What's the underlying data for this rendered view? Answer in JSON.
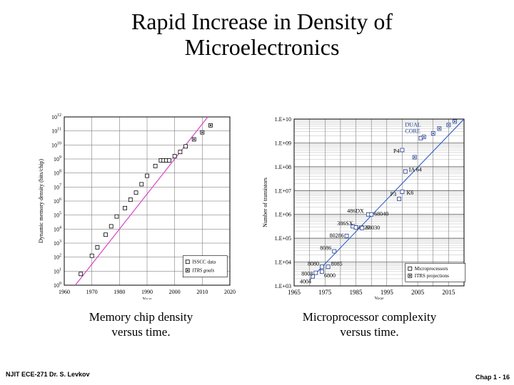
{
  "slide": {
    "title_line1": "Rapid Increase in Density of",
    "title_line2": "Microelectronics",
    "caption_left_line1": "Memory chip density",
    "caption_left_line2": "versus time.",
    "caption_right_line1": "Microprocessor complexity",
    "caption_right_line2": "versus time.",
    "footer_left": "NJIT  ECE-271   Dr. S. Levkov",
    "footer_right": "Chap 1 - 16"
  },
  "chart_data": [
    {
      "type": "scatter",
      "xlabel": "Year",
      "ylabel": "Dynamic memory density (bits/chip)",
      "xlim": [
        1960,
        2020
      ],
      "ylim_log10": [
        0,
        12
      ],
      "log_y": true,
      "grid": true,
      "x_ticks": [
        1960,
        1970,
        1980,
        1990,
        2000,
        2010,
        2020
      ],
      "y_tick_labels": [
        "10^0",
        "10^1",
        "10^2",
        "10^3",
        "10^4",
        "10^5",
        "10^6",
        "10^7",
        "10^8",
        "10^9",
        "10^10",
        "10^11",
        "10^12"
      ],
      "legend_position": "bottom-right",
      "trend_color": "#d946c8",
      "trend_log10": [
        [
          1964,
          0
        ],
        [
          2012,
          12
        ]
      ],
      "series": [
        {
          "name": "ISSCC data",
          "marker": "open-square",
          "points_log10": [
            [
              1966,
              0.8
            ],
            [
              1970,
              2.1
            ],
            [
              1972,
              2.7
            ],
            [
              1975,
              3.6
            ],
            [
              1977,
              4.2
            ],
            [
              1979,
              4.9
            ],
            [
              1982,
              5.5
            ],
            [
              1984,
              6.1
            ],
            [
              1986,
              6.6
            ],
            [
              1988,
              7.2
            ],
            [
              1990,
              7.8
            ],
            [
              1993,
              8.5
            ],
            [
              1995,
              8.9
            ],
            [
              1996,
              8.9
            ],
            [
              1997,
              8.9
            ],
            [
              1998,
              8.9
            ],
            [
              2000,
              9.2
            ],
            [
              2002,
              9.5
            ],
            [
              2004,
              9.9
            ]
          ]
        },
        {
          "name": "ITRS goals",
          "marker": "dotted-square",
          "points_log10": [
            [
              2007,
              10.4
            ],
            [
              2010,
              10.9
            ],
            [
              2013,
              11.4
            ]
          ]
        }
      ]
    },
    {
      "type": "scatter",
      "xlabel": "Year",
      "ylabel": "Number of transistors",
      "xlim": [
        1965,
        2020
      ],
      "ylim_log10": [
        3,
        10
      ],
      "log_y": true,
      "grid": true,
      "x_ticks": [
        1965,
        1975,
        1985,
        1995,
        2005,
        2015
      ],
      "y_tick_labels": [
        "1.E+03",
        "1.E+04",
        "1.E+05",
        "1.E+06",
        "1.E+07",
        "1.E+08",
        "1.E+09",
        "1.E+10"
      ],
      "legend_position": "bottom-right",
      "trend_color": "#1e4fc8",
      "trend_log10": [
        [
          1970,
          3.25
        ],
        [
          2020,
          10
        ]
      ],
      "series": [
        {
          "name": "Microprocessors",
          "marker": "open-square",
          "points": [
            {
              "label": "4004",
              "x": 1971,
              "log10": 3.4
            },
            {
              "label": "8008",
              "x": 1972,
              "log10": 3.55
            },
            {
              "label": "8080",
              "x": 1974,
              "log10": 3.8
            },
            {
              "label": "6800",
              "x": 1974,
              "log10": 3.6
            },
            {
              "label": "8085",
              "x": 1976,
              "log10": 3.8
            },
            {
              "label": "8086",
              "x": 1978,
              "log10": 4.45
            },
            {
              "label": "80286",
              "x": 1982,
              "log10": 5.1
            },
            {
              "label": "68020",
              "x": 1984,
              "log10": 5.5
            },
            {
              "label": "386SX",
              "x": 1985,
              "log10": 5.45
            },
            {
              "label": "68030",
              "x": 1987,
              "log10": 5.43
            },
            {
              "label": "486DX",
              "x": 1989,
              "log10": 6.0
            },
            {
              "label": "68040",
              "x": 1990,
              "log10": 6.0
            },
            {
              "label": "P3",
              "x": 1999,
              "log10": 6.65
            },
            {
              "label": "K6",
              "x": 2000,
              "log10": 6.95
            },
            {
              "label": "IA 64",
              "x": 2001,
              "log10": 7.8
            },
            {
              "label": "P4",
              "x": 2000,
              "log10": 8.7
            },
            {
              "label": "DUAL CORE",
              "x": 2006,
              "log10": 9.2
            }
          ]
        },
        {
          "name": "ITRS projections",
          "marker": "dotted-square",
          "points_log10": [
            [
              2004,
              8.4
            ],
            [
              2007,
              9.25
            ],
            [
              2010,
              9.4
            ],
            [
              2012,
              9.6
            ],
            [
              2015,
              9.75
            ],
            [
              2017,
              9.9
            ]
          ]
        }
      ]
    }
  ]
}
